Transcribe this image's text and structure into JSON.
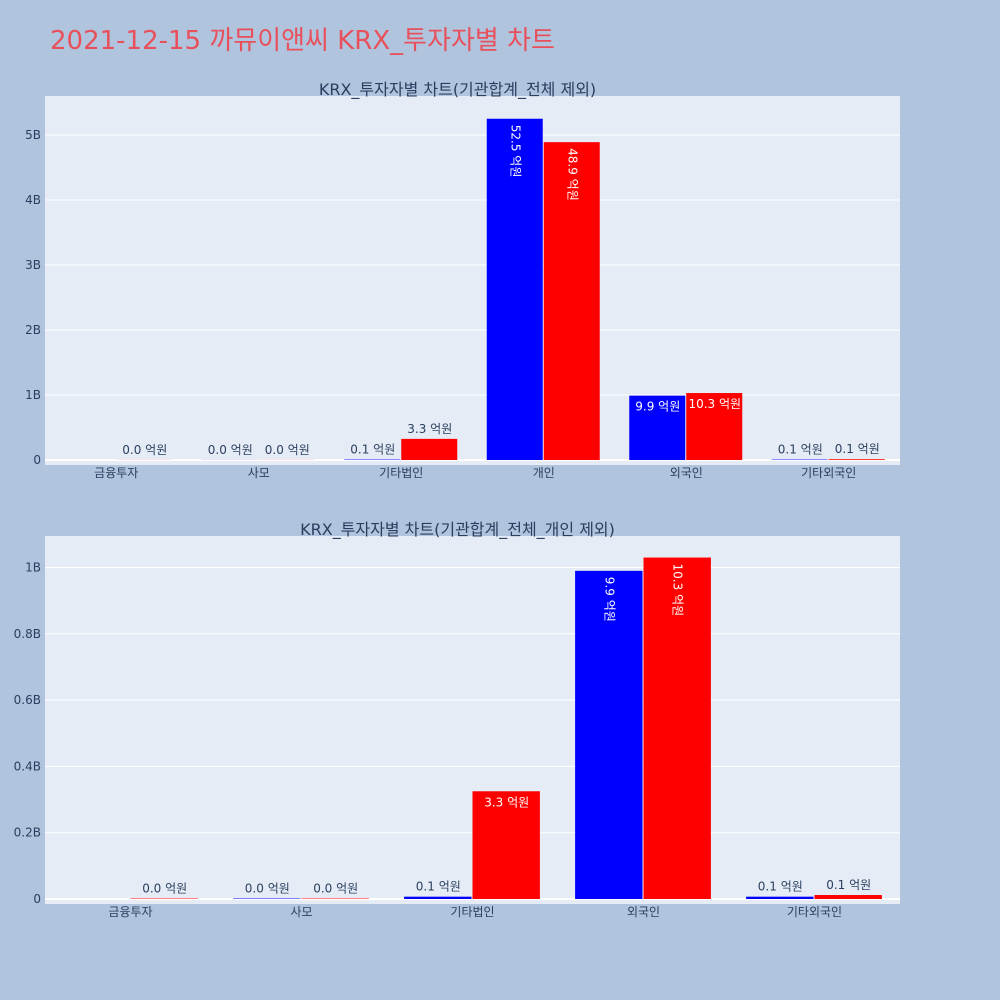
{
  "page": {
    "title": "2021-12-15 까뮤이앤씨 KRX_투자자별 차트"
  },
  "colors": {
    "buy": "#0000ff",
    "sell": "#ff0000",
    "plot_bg": "#e5ecf6",
    "page_bg": "#b0c4de",
    "title": "#e8505b",
    "axis_text": "#2a3f5f"
  },
  "chart_data": [
    {
      "type": "bar",
      "title": "KRX_투자자별 차트(기관합계_전체 제외)",
      "categories": [
        "금융투자",
        "사모",
        "기타법인",
        "개인",
        "외국인",
        "기타외국인"
      ],
      "series": [
        {
          "color": "#0000ff",
          "values": [
            0,
            1500000,
            7000000,
            5250000000,
            990000000,
            7000000
          ],
          "labels": [
            "",
            "0.0 억원",
            "0.1 억원",
            "52.5 억원",
            "9.9 억원",
            "0.1 억원"
          ]
        },
        {
          "color": "#ff0000",
          "values": [
            1500000,
            1500000,
            325000000,
            4890000000,
            1030000000,
            12000000
          ],
          "labels": [
            "0.0 억원",
            "0.0 억원",
            "3.3 억원",
            "48.9 억원",
            "10.3 억원",
            "0.1 억원"
          ]
        }
      ],
      "ylim": [
        0,
        5600000000
      ],
      "yticks": [
        0,
        1000000000,
        2000000000,
        3000000000,
        4000000000,
        5000000000
      ],
      "ytick_labels": [
        "0",
        "1B",
        "2B",
        "3B",
        "4B",
        "5B"
      ],
      "xlabel": "",
      "ylabel": "",
      "grid": true
    },
    {
      "type": "bar",
      "title": "KRX_투자자별 차트(기관합계_전체_개인 제외)",
      "categories": [
        "금융투자",
        "사모",
        "기타법인",
        "외국인",
        "기타외국인"
      ],
      "series": [
        {
          "color": "#0000ff",
          "values": [
            0,
            1500000,
            7000000,
            990000000,
            7000000
          ],
          "labels": [
            "",
            "0.0 억원",
            "0.1 억원",
            "9.9 억원",
            "0.1 억원"
          ]
        },
        {
          "color": "#ff0000",
          "values": [
            1500000,
            1500000,
            325000000,
            1030000000,
            12000000
          ],
          "labels": [
            "0.0 억원",
            "0.0 억원",
            "3.3 억원",
            "10.3 억원",
            "0.1 억원"
          ]
        }
      ],
      "ylim": [
        0,
        1095000000
      ],
      "yticks": [
        0,
        200000000,
        400000000,
        600000000,
        800000000,
        1000000000
      ],
      "ytick_labels": [
        "0",
        "0.2B",
        "0.4B",
        "0.6B",
        "0.8B",
        "1B"
      ],
      "xlabel": "",
      "ylabel": "",
      "grid": true
    }
  ]
}
